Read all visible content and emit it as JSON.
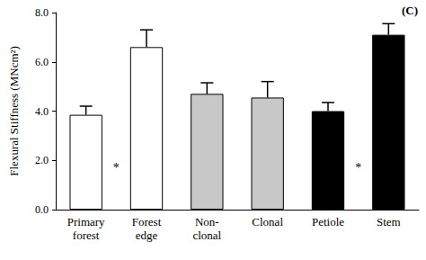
{
  "chart_data": {
    "type": "bar",
    "title": "(C)",
    "y_label": "Flexural Stiffness (MNcm²)",
    "categories": [
      "Primary\nforest",
      "Forest\nedge",
      "Non-\nclonal",
      "Clonal",
      "Petiole",
      "Stem"
    ],
    "values": [
      3.85,
      6.6,
      4.7,
      4.55,
      4.0,
      7.1
    ],
    "errors": [
      0.35,
      0.7,
      0.45,
      0.65,
      0.35,
      0.45
    ],
    "colors": [
      "#ffffff",
      "#ffffff",
      "#c8c8c8",
      "#c8c8c8",
      "#000000",
      "#000000"
    ],
    "ylim": [
      0,
      8
    ],
    "yticks": [
      {
        "value": 0,
        "label": "0.0"
      },
      {
        "value": 2,
        "label": "2.0"
      },
      {
        "value": 4,
        "label": "4.0"
      },
      {
        "value": 6,
        "label": "6.0"
      },
      {
        "value": 8,
        "label": "8.0"
      }
    ],
    "annotations": [
      {
        "text": "*",
        "between": [
          0,
          1
        ],
        "y": 1.7
      },
      {
        "text": "*",
        "between": [
          4,
          5
        ],
        "y": 1.7
      }
    ],
    "grid": false
  }
}
